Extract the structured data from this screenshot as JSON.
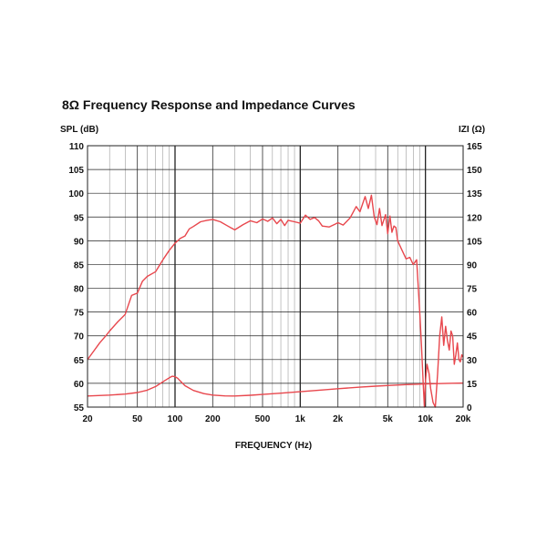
{
  "chart_data": {
    "type": "line",
    "title": "8Ω Frequency Response and Impedance Curves",
    "xlabel": "FREQUENCY (Hz)",
    "ylabel_left": "SPL (dB)",
    "ylabel_right": "IZI (Ω)",
    "xscale": "log",
    "xlim": [
      20,
      20000
    ],
    "ylim_left": [
      55,
      110
    ],
    "ylim_right": [
      0,
      165
    ],
    "grid": true,
    "colors": {
      "curve": "#e8474d",
      "grid": "#222222"
    },
    "x_ticks": [
      {
        "value": 20,
        "label": "20"
      },
      {
        "value": 50,
        "label": "50"
      },
      {
        "value": 100,
        "label": "100"
      },
      {
        "value": 200,
        "label": "200"
      },
      {
        "value": 500,
        "label": "500"
      },
      {
        "value": 1000,
        "label": "1k"
      },
      {
        "value": 2000,
        "label": "2k"
      },
      {
        "value": 5000,
        "label": "5k"
      },
      {
        "value": 10000,
        "label": "10k"
      },
      {
        "value": 20000,
        "label": "20k"
      }
    ],
    "y_ticks_left": [
      "55",
      "60",
      "65",
      "70",
      "75",
      "80",
      "85",
      "90",
      "95",
      "100",
      "105",
      "110"
    ],
    "y_ticks_right": [
      "0",
      "15",
      "30",
      "45",
      "60",
      "75",
      "90",
      "105",
      "120",
      "135",
      "150",
      "165"
    ],
    "series": [
      {
        "axis": "left",
        "x": [
          20,
          22,
          25,
          28,
          30,
          35,
          40,
          45,
          50,
          55,
          60,
          70,
          80,
          90,
          100,
          110,
          120,
          130,
          140,
          160,
          180,
          200,
          230,
          260,
          300,
          350,
          400,
          450,
          500,
          550,
          600,
          650,
          700,
          750,
          800,
          900,
          1000,
          1100,
          1200,
          1300,
          1400,
          1500,
          1700,
          1900,
          2000,
          2200,
          2500,
          2800,
          3000,
          3300,
          3500,
          3700,
          3900,
          4100,
          4300,
          4500,
          4800,
          5000,
          5200,
          5400,
          5600,
          5800,
          6000,
          6500,
          7000,
          7500,
          8000,
          8500,
          9000,
          9300,
          9600,
          9800,
          10000,
          10300,
          10700,
          11000,
          11500,
          12000,
          12500,
          13000,
          13500,
          14000,
          14500,
          15000,
          15500,
          16000,
          16500,
          17000,
          17500,
          18000,
          18500,
          19000,
          19500,
          20000
        ],
        "y": [
          65,
          66.5,
          68.5,
          70,
          71,
          73,
          74.5,
          78.5,
          79,
          81.5,
          82.5,
          83.5,
          86,
          88,
          89.5,
          90.5,
          91,
          92.5,
          93,
          94,
          94.3,
          94.5,
          94,
          93.2,
          92.3,
          93.4,
          94.2,
          93.8,
          94.6,
          94.1,
          94.8,
          93.6,
          94.5,
          93.2,
          94.3,
          94.0,
          93.7,
          95.4,
          94.5,
          94.9,
          94.2,
          93.1,
          92.9,
          93.5,
          93.8,
          93.3,
          94.8,
          97.2,
          96.1,
          99.3,
          96.8,
          99.6,
          95.0,
          93.4,
          96.8,
          93.2,
          95.5,
          91.5,
          95.2,
          91.8,
          93.1,
          92.8,
          90.0,
          88.0,
          86.2,
          86.5,
          85.0,
          86.0,
          75.0,
          68.0,
          60.0,
          55.0,
          60.5,
          64.0,
          62.0,
          59.0,
          56.0,
          55.0,
          62.0,
          70.0,
          74.0,
          68.0,
          72.0,
          69.0,
          67.0,
          71.0,
          70.0,
          64.0,
          66.0,
          68.5,
          65.0,
          64.5,
          66.0,
          65.5
        ]
      },
      {
        "axis": "right",
        "x": [
          20,
          30,
          40,
          50,
          60,
          70,
          80,
          90,
          95,
          100,
          105,
          110,
          120,
          140,
          170,
          200,
          250,
          300,
          400,
          500,
          700,
          1000,
          1500,
          2000,
          3000,
          4000,
          5000,
          7000,
          10000,
          15000,
          20000
        ],
        "y": [
          7,
          7.6,
          8.2,
          9.2,
          10.7,
          13,
          16,
          18.5,
          19.5,
          19.2,
          18.2,
          16.5,
          13.5,
          10.5,
          8.5,
          7.6,
          7.1,
          7.0,
          7.5,
          8.0,
          8.8,
          9.7,
          10.8,
          11.6,
          12.6,
          13.2,
          13.6,
          14.2,
          14.6,
          15.0,
          15.2
        ]
      }
    ]
  }
}
